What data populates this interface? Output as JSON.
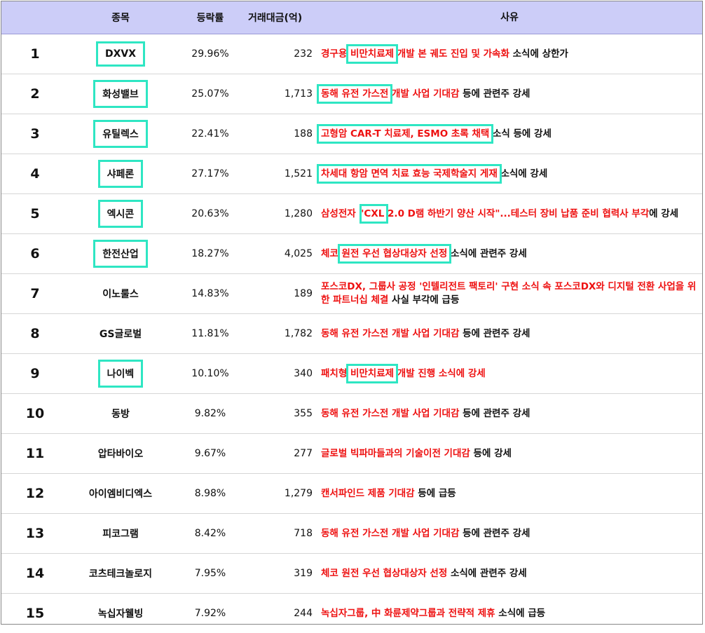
{
  "header": {
    "col_name": "종목",
    "col_rate": "등락률",
    "col_amount": "거래대금(억)",
    "col_reason": "사유"
  },
  "rows": [
    {
      "rank": "1",
      "name": "DXVX",
      "rate": "29.96%",
      "amount": "232",
      "r1": "경구용 ",
      "r2": "비만치료제",
      "r3": " 개발 본 궤도 진입 및 가속화",
      "r4": " 소식에 상한가"
    },
    {
      "rank": "2",
      "name": "화성밸브",
      "rate": "25.07%",
      "amount": "1,713",
      "r1": "동해 유전 가스전",
      "r2": " 개발 사업 기대감",
      "r3": " 등에 관련주 강세"
    },
    {
      "rank": "3",
      "name": "유틸렉스",
      "rate": "22.41%",
      "amount": "188",
      "r1": "고형암 CAR-T 치료제, ESMO 초록 채택",
      "r2": " 소식 등에 강세"
    },
    {
      "rank": "4",
      "name": "샤페론",
      "rate": "27.17%",
      "amount": "1,521",
      "r1": "차세대 항암 면역 치료 효능 국제학술지 게재",
      "r2": " 소식에 강세"
    },
    {
      "rank": "5",
      "name": "엑시콘",
      "rate": "20.63%",
      "amount": "1,280",
      "r1": "삼성전자 \"",
      "r2": "CXL",
      "r3": " 2.0 D램 하반기 양산 시작\"...테스터 장비 납품 준비 협력사 부각",
      "r4": "에 강세"
    },
    {
      "rank": "6",
      "name": "한전산업",
      "rate": "18.27%",
      "amount": "4,025",
      "r1": "체코 ",
      "r2": "원전 우선 협상대상자 선정",
      "r3": " 소식에 관련주 강세"
    },
    {
      "rank": "7",
      "name": "이노룰스",
      "rate": "14.83%",
      "amount": "189",
      "r1": "포스코DX, 그룹사 공정 '인텔리전트 팩토리' 구현 소식 속 포스코DX와 디지털 전환 사업을 위한 파트너십 체결",
      "r2": " 사실 부각에 급등"
    },
    {
      "rank": "8",
      "name": "GS글로벌",
      "rate": "11.81%",
      "amount": "1,782",
      "r1": "동해 유전 가스전 개발 사업 기대감",
      "r2": " 등에 관련주 강세"
    },
    {
      "rank": "9",
      "name": "나이벡",
      "rate": "10.10%",
      "amount": "340",
      "r1": "패치형 ",
      "r2": "비만치료제",
      "r3": " 개발 진행 소식에 강세"
    },
    {
      "rank": "10",
      "name": "동방",
      "rate": "9.82%",
      "amount": "355",
      "r1": "동해 유전 가스전 개발 사업 기대감",
      "r2": " 등에 관련주 강세"
    },
    {
      "rank": "11",
      "name": "압타바이오",
      "rate": "9.67%",
      "amount": "277",
      "r1": "글로벌 빅파마들과의 기술이전 기대감",
      "r2": " 등에 강세"
    },
    {
      "rank": "12",
      "name": "아이엠비디엑스",
      "rate": "8.98%",
      "amount": "1,279",
      "r1": "캔서파인드 제품 기대감",
      "r2": " 등에 급등"
    },
    {
      "rank": "13",
      "name": "피코그램",
      "rate": "8.42%",
      "amount": "718",
      "r1": "동해 유전 가스전 개발 사업 기대감",
      "r2": " 등에 관련주 강세"
    },
    {
      "rank": "14",
      "name": "코츠테크놀로지",
      "rate": "7.95%",
      "amount": "319",
      "r1": "체코 원전 우선 협상대상자 선정",
      "r2": " 소식에 관련주 강세"
    },
    {
      "rank": "15",
      "name": "녹십자웰빙",
      "rate": "7.92%",
      "amount": "244",
      "r1": "녹십자그룹, 中 화륜제약그룹과 전략적 제휴",
      "r2": " 소식에 급등"
    }
  ],
  "colors": {
    "header_bg": "#cccdf8",
    "highlight_border": "#2ee6c3",
    "reason_red": "#ee1111"
  }
}
